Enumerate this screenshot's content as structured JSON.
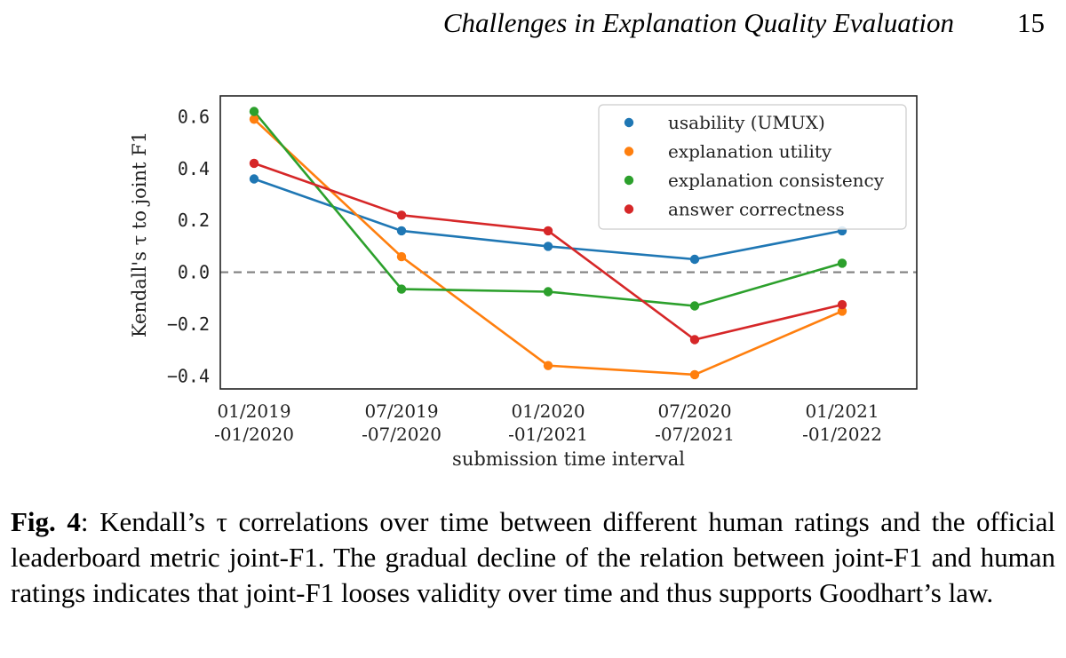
{
  "header": {
    "running_title": "Challenges in Explanation Quality Evaluation",
    "page_number": "15"
  },
  "caption": {
    "label": "Fig. 4",
    "text": ": Kendall’s τ correlations over time between different human ratings and the official leaderboard metric joint-F1. The gradual decline of the relation between joint-F1 and human ratings indicates that joint-F1 looses validity over time and thus supports Goodhart’s law."
  },
  "chart_data": {
    "type": "line",
    "xlabel": "submission time interval",
    "ylabel": "Kendall's τ to joint F1",
    "categories": [
      [
        "01/2019",
        "-01/2020"
      ],
      [
        "07/2019",
        "-07/2020"
      ],
      [
        "01/2020",
        "-01/2021"
      ],
      [
        "07/2020",
        "-07/2021"
      ],
      [
        "01/2021",
        "-01/2022"
      ]
    ],
    "ylim": [
      -0.45,
      0.68
    ],
    "yticks": [
      -0.4,
      -0.2,
      0.0,
      0.2,
      0.4,
      0.6
    ],
    "ytick_labels": [
      "−0.4",
      "−0.2",
      "0.0",
      "0.2",
      "0.4",
      "0.6"
    ],
    "reference_line": {
      "y": 0.0,
      "style": "dashed",
      "color": "#808080"
    },
    "grid": false,
    "legend_position": "upper right",
    "series": [
      {
        "name": "usability (UMUX)",
        "color": "#1f77b4",
        "values": [
          0.36,
          0.16,
          0.1,
          0.05,
          0.16
        ]
      },
      {
        "name": "explanation utility",
        "color": "#ff7f0e",
        "values": [
          0.59,
          0.06,
          -0.36,
          -0.395,
          -0.15
        ]
      },
      {
        "name": "explanation consistency",
        "color": "#2ca02c",
        "values": [
          0.62,
          -0.065,
          -0.075,
          -0.13,
          0.035
        ]
      },
      {
        "name": "answer correctness",
        "color": "#d62728",
        "values": [
          0.42,
          0.22,
          0.16,
          -0.26,
          -0.125
        ]
      }
    ]
  }
}
